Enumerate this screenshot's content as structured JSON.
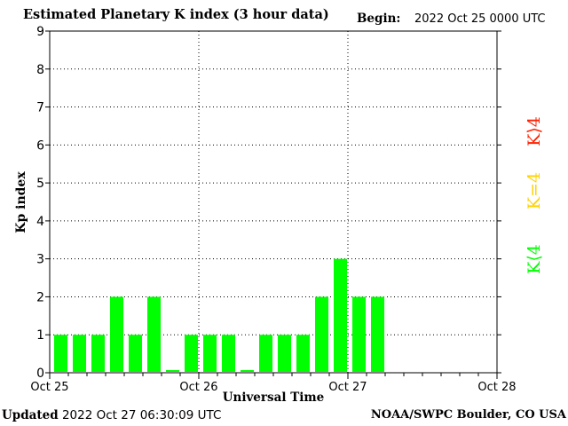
{
  "header": {
    "title": "Estimated Planetary K index (3 hour data)",
    "begin_label": "Begin:",
    "begin_value": "2022 Oct 25 0000 UTC"
  },
  "footer": {
    "updated_label": "Updated",
    "updated_value": "2022 Oct 27 06:30:09 UTC",
    "credit": "NOAA/SWPC Boulder, CO USA"
  },
  "legend": {
    "items": [
      {
        "label": "K⟨4",
        "color": "#00ff00"
      },
      {
        "label": "K=4",
        "color": "#ffd200"
      },
      {
        "label": "K⟩4",
        "color": "#ff2000"
      }
    ]
  },
  "colors": {
    "bar": "#00ff00",
    "axis": "#000000",
    "grid": "#000000",
    "background": "#ffffff"
  },
  "chart_data": {
    "type": "bar",
    "title": "Estimated Planetary K index (3 hour data)",
    "xlabel": "Universal Time",
    "ylabel": "Kp index",
    "ylim": [
      0,
      9
    ],
    "yticks": [
      "0",
      "1",
      "2",
      "3",
      "4",
      "5",
      "6",
      "7",
      "8",
      "9"
    ],
    "xlim": [
      "Oct 25",
      "Oct 28"
    ],
    "xticks": [
      "Oct 25",
      "Oct 26",
      "Oct 27",
      "Oct 28"
    ],
    "grid": "dotted",
    "bar_interval_hours": 3,
    "series": [
      {
        "values": [
          1,
          1,
          1,
          2,
          1,
          2,
          0,
          1,
          1,
          1,
          0,
          1,
          1,
          1,
          2,
          3,
          2,
          2
        ]
      }
    ]
  }
}
